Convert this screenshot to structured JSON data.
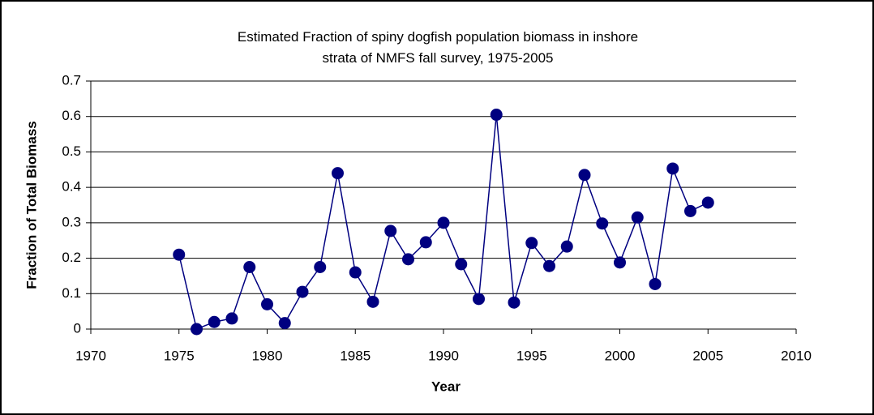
{
  "chart_data": {
    "type": "line",
    "title": "Estimated Fraction of spiny dogfish population biomass in inshore strata of NMFS fall survey, 1975-2005",
    "x_label": "Year",
    "y_label": "Fraction of Total Biomass",
    "x": [
      1975,
      1976,
      1977,
      1978,
      1979,
      1980,
      1981,
      1982,
      1983,
      1984,
      1985,
      1986,
      1987,
      1988,
      1989,
      1990,
      1991,
      1992,
      1993,
      1994,
      1995,
      1996,
      1997,
      1998,
      1999,
      2000,
      2001,
      2002,
      2003,
      2004,
      2005
    ],
    "series": [
      {
        "name": "Fraction",
        "color": "#000080",
        "values": [
          0.21,
          0.0,
          0.02,
          0.03,
          0.175,
          0.07,
          0.017,
          0.105,
          0.175,
          0.44,
          0.16,
          0.077,
          0.277,
          0.197,
          0.245,
          0.3,
          0.183,
          0.085,
          0.605,
          0.075,
          0.243,
          0.178,
          0.233,
          0.435,
          0.298,
          0.188,
          0.315,
          0.127,
          0.453,
          0.333,
          0.357
        ]
      }
    ],
    "xlim": [
      1970,
      2010
    ],
    "xticks": [
      1970,
      1975,
      1980,
      1985,
      1990,
      1995,
      2000,
      2005,
      2010
    ],
    "ylim": [
      0,
      0.7
    ],
    "yticks": [
      0,
      0.1,
      0.2,
      0.3,
      0.4,
      0.5,
      0.6,
      0.7
    ],
    "grid": true
  }
}
